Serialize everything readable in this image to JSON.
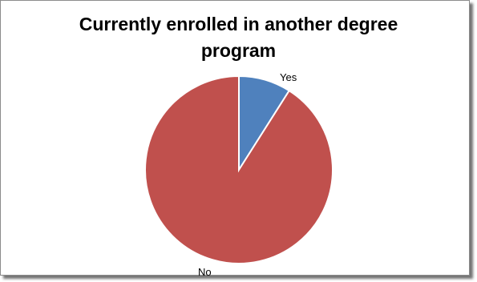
{
  "chart_data": {
    "type": "pie",
    "title": "Currently enrolled in another degree program",
    "title_lines": [
      "Currently enrolled in another degree",
      "program"
    ],
    "slices": [
      {
        "label": "Yes",
        "value": 9,
        "color": "#4f81bd"
      },
      {
        "label": "No",
        "value": 91,
        "color": "#c0504d"
      }
    ],
    "legend": "none",
    "slice_border_color": "#ffffff"
  }
}
